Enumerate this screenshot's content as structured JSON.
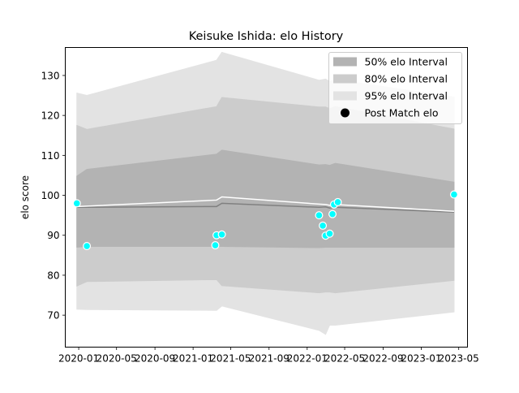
{
  "chart_data": {
    "type": "area",
    "title": "Keisuke Ishida: elo History",
    "xlabel": "",
    "ylabel": "elo score",
    "x_ticks": [
      "2020-01",
      "2020-05",
      "2020-09",
      "2021-01",
      "2021-05",
      "2021-09",
      "2022-01",
      "2022-05",
      "2022-09",
      "2023-01",
      "2023-05"
    ],
    "y_ticks": [
      70,
      80,
      90,
      100,
      110,
      120,
      130
    ],
    "xlim": [
      "2019-11-19",
      "2023-05-29"
    ],
    "ylim": [
      62,
      137
    ],
    "legend_position": "top-right",
    "legend": [
      {
        "label": "50% elo Interval",
        "kind": "patch",
        "color": "#b3b3b3"
      },
      {
        "label": "80% elo Interval",
        "kind": "patch",
        "color": "#cccccc"
      },
      {
        "label": "95% elo Interval",
        "kind": "patch",
        "color": "#e3e3e3"
      },
      {
        "label": "Post Match elo",
        "kind": "marker",
        "color": "#000000"
      }
    ],
    "band_x": [
      "2019-12-26",
      "2020-01-27",
      "2021-03-17",
      "2021-04-03",
      "2022-02-08",
      "2022-03-01",
      "2022-03-14",
      "2022-04-01",
      "2023-04-16"
    ],
    "median": [
      97.0,
      97.0,
      97.2,
      98.0,
      97.0,
      97.1,
      96.8,
      97.0,
      95.8
    ],
    "mean": [
      97.2,
      97.3,
      98.8,
      99.6,
      97.8,
      97.7,
      97.5,
      97.7,
      96.0
    ],
    "band_50": {
      "lower": [
        87.0,
        87.2,
        87.2,
        87.2,
        86.9,
        87.0,
        87.0,
        87.0,
        87.0
      ],
      "upper": [
        104.8,
        106.5,
        110.3,
        111.3,
        107.6,
        107.7,
        107.5,
        108.0,
        103.3
      ]
    },
    "band_80": {
      "lower": [
        77.3,
        78.4,
        78.9,
        77.4,
        75.6,
        75.8,
        75.8,
        75.6,
        78.7
      ],
      "upper": [
        117.5,
        116.5,
        122.2,
        124.5,
        122.1,
        122.1,
        121.7,
        122.2,
        116.6
      ]
    },
    "band_95": {
      "lower": [
        71.5,
        71.4,
        71.2,
        72.3,
        66.2,
        65.2,
        67.5,
        67.5,
        70.8
      ],
      "upper": [
        125.6,
        125.0,
        133.8,
        135.8,
        128.8,
        129.1,
        128.5,
        129.0,
        124.6
      ]
    },
    "points": [
      {
        "x": "2019-12-26",
        "y": 98.0
      },
      {
        "x": "2020-01-27",
        "y": 87.3
      },
      {
        "x": "2021-03-13",
        "y": 87.5
      },
      {
        "x": "2021-03-17",
        "y": 90.0
      },
      {
        "x": "2021-04-03",
        "y": 90.2
      },
      {
        "x": "2022-02-08",
        "y": 95.0
      },
      {
        "x": "2022-02-20",
        "y": 92.4
      },
      {
        "x": "2022-03-01",
        "y": 89.9
      },
      {
        "x": "2022-03-14",
        "y": 90.4
      },
      {
        "x": "2022-03-23",
        "y": 95.3
      },
      {
        "x": "2022-03-28",
        "y": 97.7
      },
      {
        "x": "2022-04-09",
        "y": 98.3
      },
      {
        "x": "2023-04-16",
        "y": 100.2
      }
    ],
    "colors": {
      "mean_line": "#ffffff",
      "median_line": "#808080",
      "points": "#00ffff"
    }
  }
}
